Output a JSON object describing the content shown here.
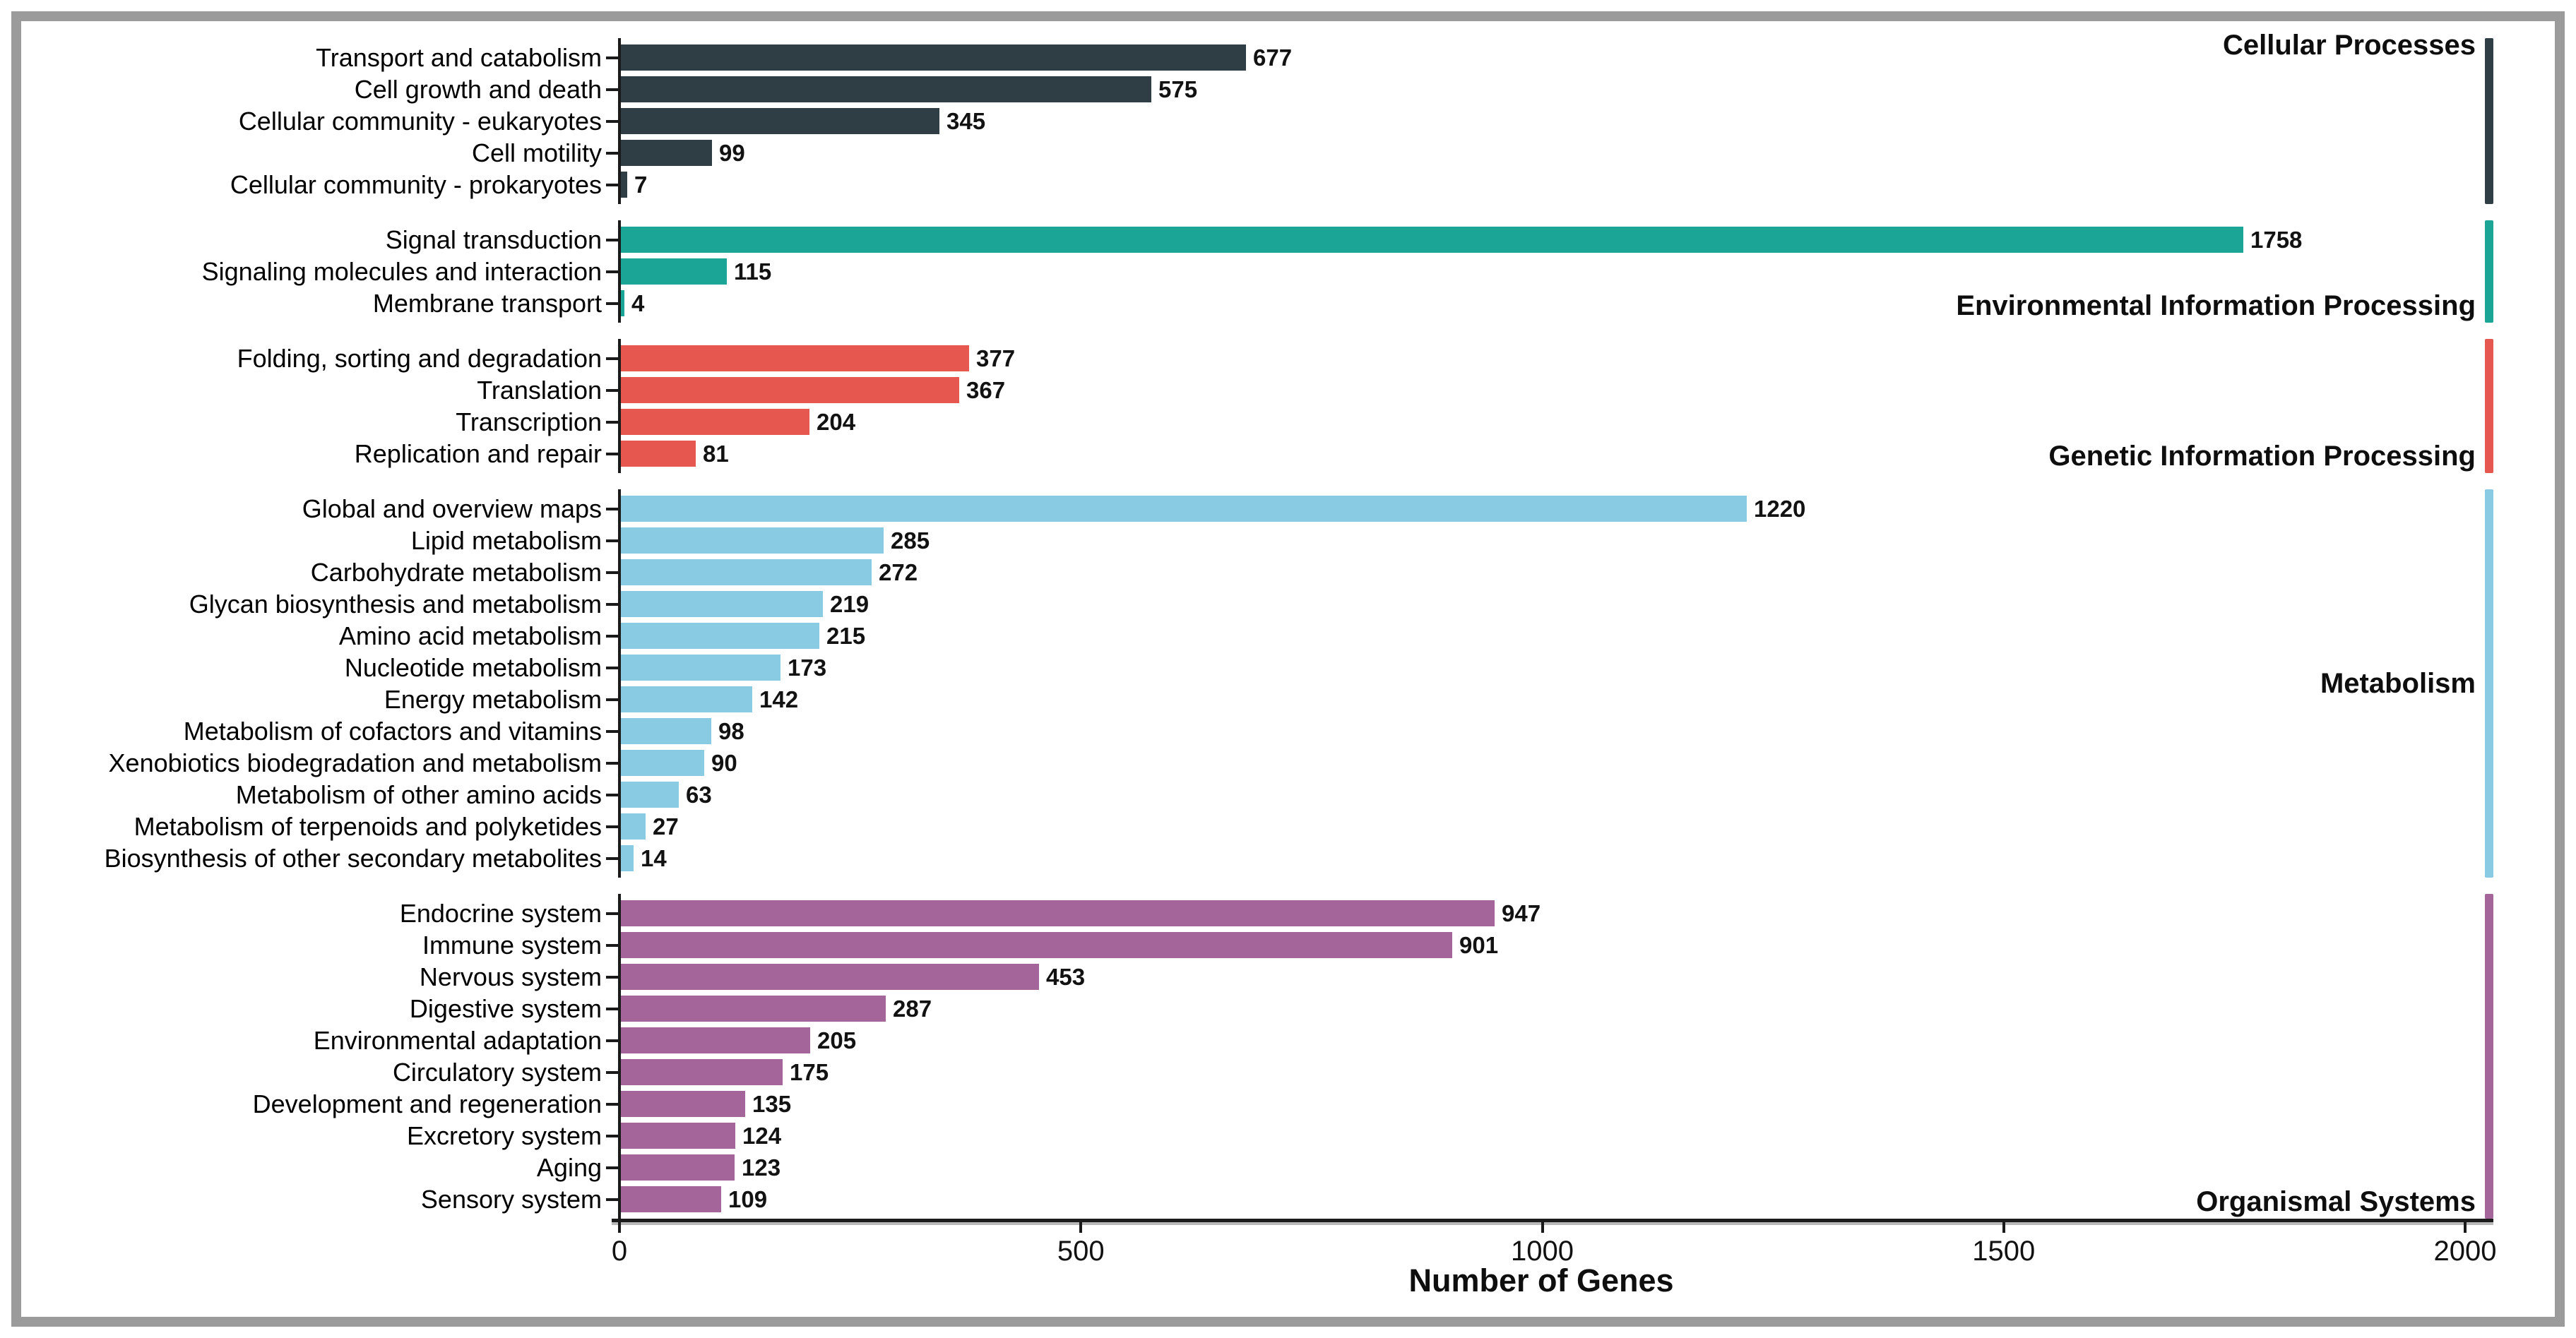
{
  "chart_data": {
    "type": "bar",
    "orientation": "horizontal",
    "title": "",
    "xlabel": "Number of Genes",
    "ylabel": "",
    "xlim": [
      0,
      2030
    ],
    "x_ticks": [
      0,
      500,
      1000,
      1500,
      2000
    ],
    "grid": "off",
    "value_labels": "shown at bar ends",
    "group_label_side": "right",
    "groups": [
      {
        "name": "Cellular Processes",
        "color": "#2f3e44",
        "label_position": "top",
        "items": [
          {
            "label": "Transport and catabolism",
            "value": 677
          },
          {
            "label": "Cell growth and death",
            "value": 575
          },
          {
            "label": "Cellular community - eukaryotes",
            "value": 345
          },
          {
            "label": "Cell motility",
            "value": 99
          },
          {
            "label": "Cellular community - prokaryotes",
            "value": 7
          }
        ]
      },
      {
        "name": "Environmental Information Processing",
        "color": "#1aa596",
        "label_position": "bottom",
        "items": [
          {
            "label": "Signal transduction",
            "value": 1758
          },
          {
            "label": "Signaling molecules and interaction",
            "value": 115
          },
          {
            "label": "Membrane transport",
            "value": 4
          }
        ]
      },
      {
        "name": "Genetic Information Processing",
        "color": "#e6574f",
        "label_position": "bottom",
        "items": [
          {
            "label": "Folding, sorting and degradation",
            "value": 377
          },
          {
            "label": "Translation",
            "value": 367
          },
          {
            "label": "Transcription",
            "value": 204
          },
          {
            "label": "Replication and repair",
            "value": 81
          }
        ]
      },
      {
        "name": "Metabolism",
        "color": "#88cbe2",
        "label_position": "middle",
        "items": [
          {
            "label": "Global and overview maps",
            "value": 1220
          },
          {
            "label": "Lipid metabolism",
            "value": 285
          },
          {
            "label": "Carbohydrate metabolism",
            "value": 272
          },
          {
            "label": "Glycan biosynthesis and metabolism",
            "value": 219
          },
          {
            "label": "Amino acid metabolism",
            "value": 215
          },
          {
            "label": "Nucleotide metabolism",
            "value": 173
          },
          {
            "label": "Energy metabolism",
            "value": 142
          },
          {
            "label": "Metabolism of cofactors and vitamins",
            "value": 98
          },
          {
            "label": "Xenobiotics biodegradation and metabolism",
            "value": 90
          },
          {
            "label": "Metabolism of other amino acids",
            "value": 63
          },
          {
            "label": "Metabolism of terpenoids and polyketides",
            "value": 27
          },
          {
            "label": "Biosynthesis of other secondary metabolites",
            "value": 14
          }
        ]
      },
      {
        "name": "Organismal Systems",
        "color": "#a4659b",
        "label_position": "bottom",
        "items": [
          {
            "label": "Endocrine system",
            "value": 947
          },
          {
            "label": "Immune system",
            "value": 901
          },
          {
            "label": "Nervous system",
            "value": 453
          },
          {
            "label": "Digestive system",
            "value": 287
          },
          {
            "label": "Environmental adaptation",
            "value": 205
          },
          {
            "label": "Circulatory system",
            "value": 175
          },
          {
            "label": "Development and regeneration",
            "value": 135
          },
          {
            "label": "Excretory system",
            "value": 124
          },
          {
            "label": "Aging",
            "value": 123
          },
          {
            "label": "Sensory system",
            "value": 109
          }
        ]
      }
    ]
  }
}
